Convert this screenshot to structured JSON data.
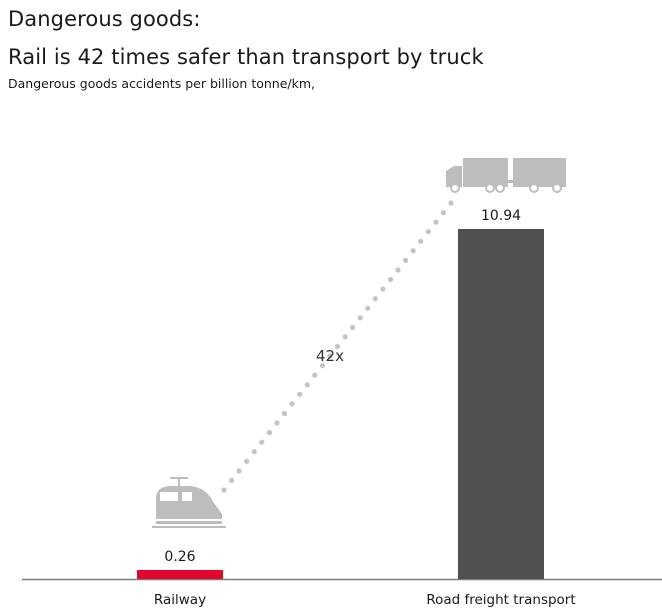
{
  "title_line1": "Dangerous goods:",
  "title_line2": "Rail is 42 times safer than transport by truck",
  "subtitle": "Dangerous goods accidents per billion tonne/km,",
  "chart_data": {
    "type": "bar",
    "title": "Rail is 42 times safer than transport by truck",
    "subtitle": "Dangerous goods accidents per billion tonne/km,",
    "categories": [
      "Railway",
      "Road freight transport"
    ],
    "values": [
      0.26,
      10.94
    ],
    "value_labels": [
      "0.26",
      "10.94"
    ],
    "colors": [
      "#e3062c",
      "#505050"
    ],
    "icons": [
      "train-icon",
      "truck-icon"
    ],
    "annotation": "42x",
    "ylim": [
      0,
      10.94
    ],
    "grid": false,
    "legend": "none"
  }
}
